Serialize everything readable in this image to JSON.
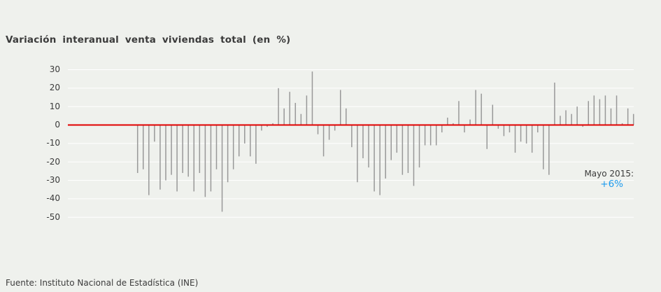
{
  "page": {
    "title": "Variación interanual venta viviendas total (en %)",
    "source": "Fuente: Instituto Nacional de Estadística (INE)"
  },
  "annotation": {
    "label": "Mayo 2015:",
    "value": "+6%"
  },
  "chart_data": {
    "type": "bar",
    "title": "Variación interanual venta viviendas total (en %)",
    "ylabel": "",
    "xlabel": "",
    "ylim": [
      -50,
      30
    ],
    "yticks": [
      30,
      20,
      10,
      0,
      -10,
      -20,
      -30,
      -40,
      -50
    ],
    "grid": true,
    "x_axis_labels_visible": false,
    "n_points": 89,
    "zero_line_highlighted": true,
    "last_point_annotation": "Mayo 2015: +6%",
    "values": [
      -26,
      -24,
      -38,
      -9,
      -35,
      -30,
      -27,
      -36,
      -26,
      -28,
      -36,
      -26,
      -39,
      -36,
      -24,
      -47,
      -31,
      -24,
      -17,
      -10,
      -17,
      -21,
      -3,
      -1,
      1,
      20,
      9,
      18,
      12,
      6,
      16,
      29,
      -5,
      -17,
      -8,
      -3,
      19,
      9,
      -12,
      -31,
      -18,
      -23,
      -36,
      -38,
      -29,
      -19,
      -15,
      -27,
      -26,
      -33,
      -23,
      -11,
      -11,
      -11,
      -4,
      4,
      1,
      13,
      -4,
      3,
      19,
      17,
      -13,
      11,
      -2,
      -6,
      -4,
      -15,
      -9,
      -10,
      -15,
      -4,
      -24,
      -27,
      23,
      5,
      8,
      6,
      10,
      -1,
      13,
      16,
      14,
      16,
      9,
      16,
      1,
      9,
      6
    ]
  },
  "colors": {
    "background": "#eff1ed",
    "gridline": "#ffffff",
    "zero_line": "#e00000",
    "bar": "#989898",
    "text": "#3b3b3b",
    "annotation_value": "#1d9bee"
  }
}
